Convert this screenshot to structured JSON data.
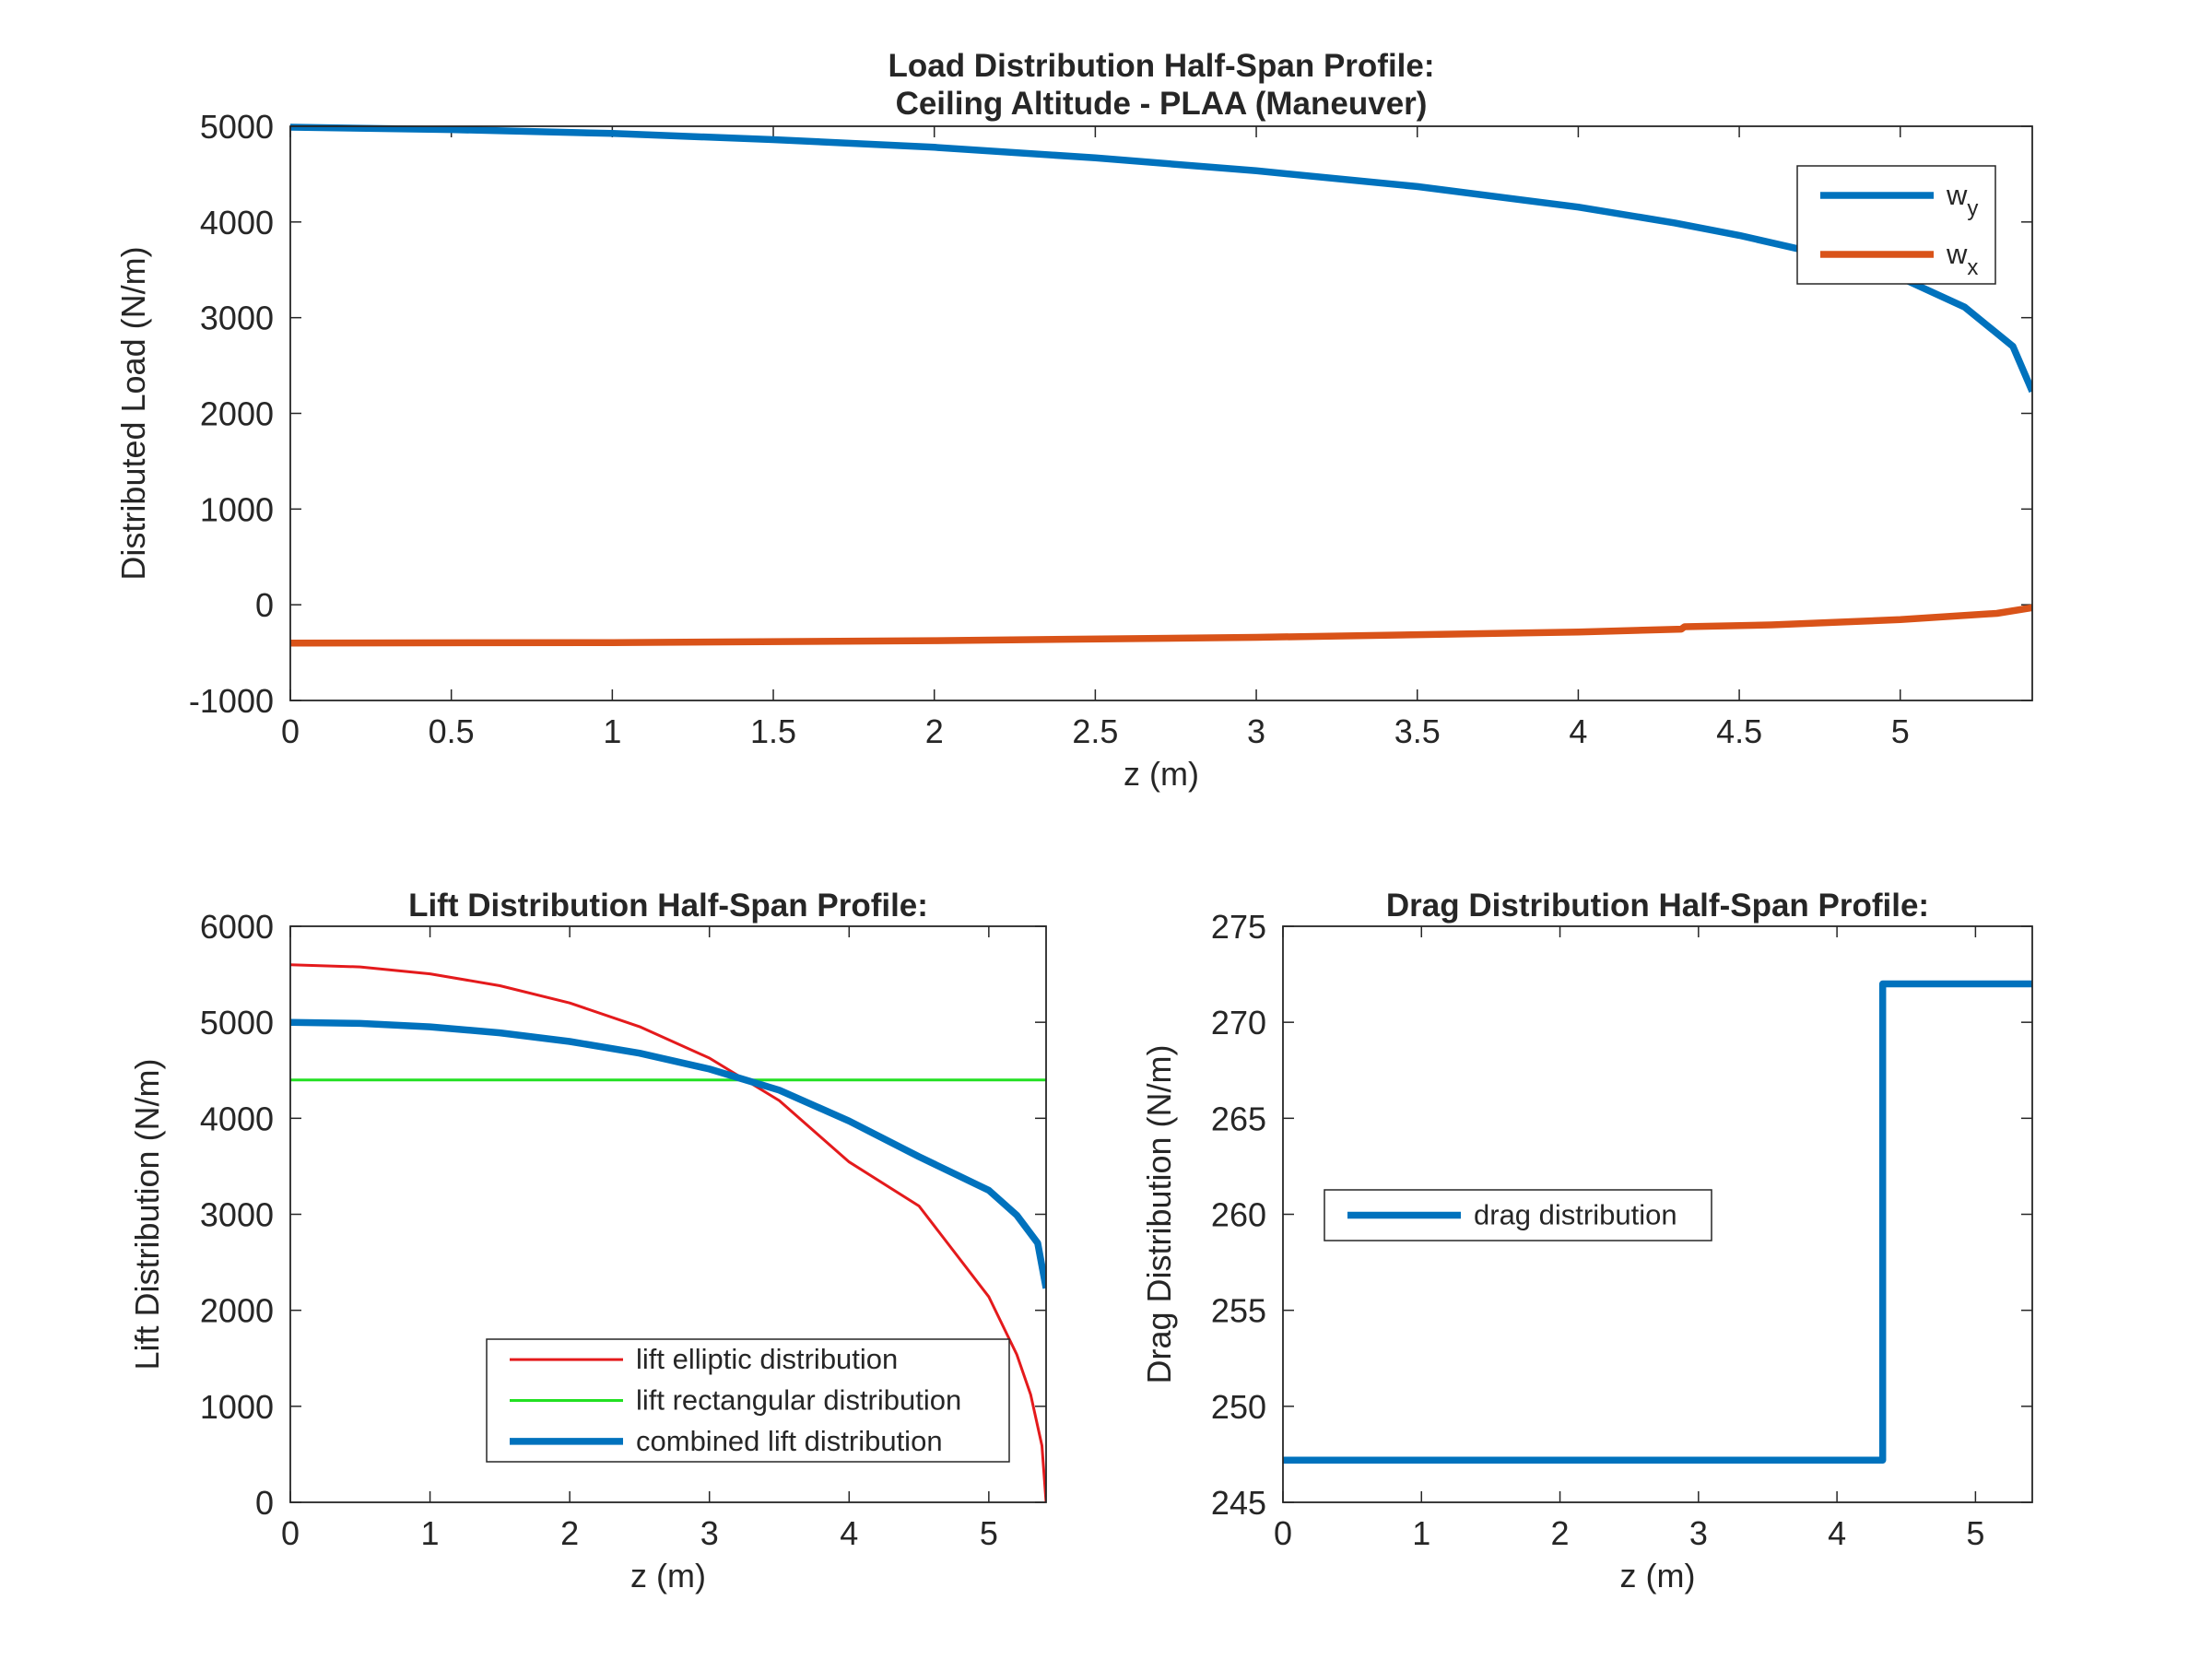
{
  "chart_data": [
    {
      "id": "load",
      "type": "line",
      "title": [
        "Load Distribution Half-Span Profile:",
        "Ceiling Altitude - PLAA (Maneuver)"
      ],
      "xlabel": "z (m)",
      "ylabel": "Distributed Load (N/m)",
      "xlim": [
        0,
        5.41
      ],
      "ylim": [
        -1000,
        5000
      ],
      "xticks": [
        0,
        0.5,
        1,
        1.5,
        2,
        2.5,
        3,
        3.5,
        4,
        4.5,
        5
      ],
      "xtick_labels": [
        "0",
        "0.5",
        "1",
        "1.5",
        "2",
        "2.5",
        "3",
        "3.5",
        "4",
        "4.5",
        "5"
      ],
      "yticks": [
        -1000,
        0,
        1000,
        2000,
        3000,
        4000,
        5000
      ],
      "ytick_labels": [
        "-1000",
        "0",
        "1000",
        "2000",
        "3000",
        "4000",
        "5000"
      ],
      "legend_position": "top-right",
      "grid": false,
      "series": [
        {
          "name": "w",
          "name_sub": "y",
          "color": "#0072BD",
          "width": "thick",
          "x": [
            0,
            0.5,
            1,
            1.5,
            2,
            2.5,
            3,
            3.5,
            4,
            4.3,
            4.5,
            4.8,
            5,
            5.2,
            5.35,
            5.41
          ],
          "y": [
            4990,
            4965,
            4925,
            4860,
            4780,
            4670,
            4535,
            4370,
            4155,
            3990,
            3860,
            3630,
            3420,
            3110,
            2700,
            2230
          ]
        },
        {
          "name": "w",
          "name_sub": "x",
          "color": "#D95319",
          "width": "thick",
          "x": [
            0,
            1,
            2,
            3,
            4,
            4.32,
            4.33,
            4.6,
            5,
            5.3,
            5.41
          ],
          "y": [
            -400,
            -395,
            -375,
            -340,
            -285,
            -255,
            -230,
            -210,
            -155,
            -90,
            -30
          ]
        }
      ]
    },
    {
      "id": "lift",
      "type": "line",
      "title": [
        "Lift Distribution Half-Span Profile:"
      ],
      "xlabel": "z (m)",
      "ylabel": "Lift Distribution (N/m)",
      "xlim": [
        0,
        5.41
      ],
      "ylim": [
        0,
        6000
      ],
      "xticks": [
        0,
        1,
        2,
        3,
        4,
        5
      ],
      "xtick_labels": [
        "0",
        "1",
        "2",
        "3",
        "4",
        "5"
      ],
      "yticks": [
        0,
        1000,
        2000,
        3000,
        4000,
        5000,
        6000
      ],
      "ytick_labels": [
        "0",
        "1000",
        "2000",
        "3000",
        "4000",
        "5000",
        "6000"
      ],
      "legend_position": "bottom-right",
      "grid": false,
      "series": [
        {
          "name": "lift elliptic distribution",
          "color": "#E41A1C",
          "width": "thin",
          "x": [
            0,
            0.5,
            1,
            1.5,
            2,
            2.5,
            3,
            3.5,
            4,
            4.5,
            5,
            5.2,
            5.3,
            5.38,
            5.41
          ],
          "y": [
            5600,
            5577,
            5505,
            5381,
            5201,
            4955,
            4627,
            4185,
            3545,
            3086,
            2140,
            1540,
            1120,
            590,
            0
          ]
        },
        {
          "name": "lift rectangular distribution",
          "color": "#22E022",
          "width": "thin",
          "x": [
            0,
            5.41
          ],
          "y": [
            4400,
            4400
          ]
        },
        {
          "name": "combined lift distribution",
          "color": "#0072BD",
          "width": "thick",
          "x": [
            0,
            0.5,
            1,
            1.5,
            2,
            2.5,
            3,
            3.5,
            4,
            4.5,
            5,
            5.2,
            5.35,
            5.41
          ],
          "y": [
            5000,
            4988,
            4953,
            4890,
            4800,
            4678,
            4513,
            4293,
            3972,
            3600,
            3250,
            2990,
            2700,
            2230
          ]
        }
      ]
    },
    {
      "id": "drag",
      "type": "line",
      "title": [
        "Drag Distribution Half-Span Profile:"
      ],
      "xlabel": "z (m)",
      "ylabel": "Drag Distribution (N/m)",
      "xlim": [
        0,
        5.41
      ],
      "ylim": [
        245,
        275
      ],
      "xticks": [
        0,
        1,
        2,
        3,
        4,
        5
      ],
      "xtick_labels": [
        "0",
        "1",
        "2",
        "3",
        "4",
        "5"
      ],
      "yticks": [
        245,
        250,
        255,
        260,
        265,
        270,
        275
      ],
      "ytick_labels": [
        "245",
        "250",
        "255",
        "260",
        "265",
        "270",
        "275"
      ],
      "legend_position": "middle-left",
      "grid": false,
      "series": [
        {
          "name": "drag distribution",
          "color": "#0072BD",
          "width": "thick",
          "x": [
            0,
            4.33,
            4.33,
            5.41
          ],
          "y": [
            247.2,
            247.2,
            272,
            272
          ]
        }
      ]
    }
  ]
}
